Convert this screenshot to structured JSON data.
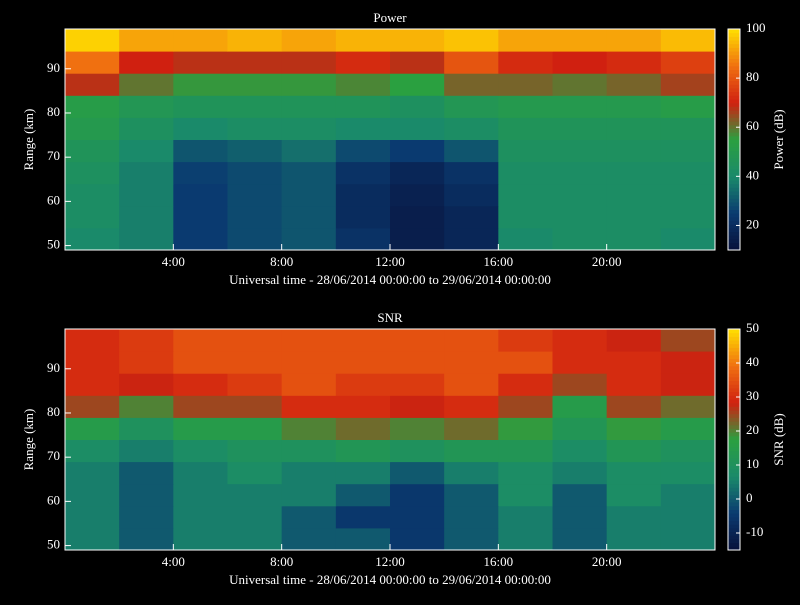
{
  "chart_data": [
    {
      "type": "heatmap",
      "title": "Power",
      "xlabel": "Universal time - 28/06/2014 00:00:00 to 29/06/2014 00:00:00",
      "ylabel": "Range (km)",
      "zlabel": "Power (dB)",
      "xlim": [
        0,
        24
      ],
      "xticks": [
        {
          "value": 4,
          "label": "4:00"
        },
        {
          "value": 8,
          "label": "8:00"
        },
        {
          "value": 12,
          "label": "12:00"
        },
        {
          "value": 16,
          "label": "16:00"
        },
        {
          "value": 20,
          "label": "20:00"
        }
      ],
      "ylim": [
        49,
        99
      ],
      "yticks": [
        50,
        60,
        70,
        80,
        90
      ],
      "zlim": [
        10,
        100
      ],
      "zticks": [
        20,
        40,
        60,
        80,
        100
      ],
      "colormap": [
        "#08103a",
        "#0a3a70",
        "#1a8a6a",
        "#2aa040",
        "#d02010",
        "#f07010",
        "#ffe000"
      ],
      "xbins": [
        0,
        2,
        4,
        6,
        8,
        10,
        12,
        14,
        16,
        18,
        20,
        22,
        24
      ],
      "ybins": [
        49,
        54,
        59,
        64,
        69,
        74,
        79,
        84,
        89,
        94,
        99
      ],
      "z": [
        [
          40,
          38,
          25,
          28,
          30,
          22,
          15,
          18,
          40,
          42,
          42,
          40
        ],
        [
          42,
          38,
          25,
          28,
          30,
          20,
          15,
          18,
          42,
          42,
          42,
          42
        ],
        [
          42,
          38,
          25,
          28,
          30,
          20,
          16,
          20,
          42,
          42,
          42,
          42
        ],
        [
          44,
          38,
          26,
          28,
          30,
          22,
          18,
          22,
          42,
          42,
          42,
          42
        ],
        [
          46,
          40,
          30,
          32,
          35,
          28,
          25,
          30,
          44,
          44,
          44,
          44
        ],
        [
          50,
          44,
          40,
          42,
          42,
          40,
          40,
          42,
          46,
          46,
          46,
          46
        ],
        [
          52,
          48,
          46,
          46,
          46,
          46,
          44,
          48,
          50,
          50,
          50,
          52
        ],
        [
          68,
          60,
          56,
          56,
          56,
          58,
          55,
          62,
          62,
          60,
          62,
          66
        ],
        [
          85,
          70,
          68,
          68,
          68,
          72,
          68,
          80,
          72,
          70,
          72,
          76
        ],
        [
          98,
          92,
          92,
          94,
          92,
          94,
          94,
          96,
          92,
          92,
          92,
          95
        ]
      ]
    },
    {
      "type": "heatmap",
      "title": "SNR",
      "xlabel": "Universal time - 28/06/2014 00:00:00 to 29/06/2014 00:00:00",
      "ylabel": "Range (km)",
      "zlabel": "SNR (dB)",
      "xlim": [
        0,
        24
      ],
      "xticks": [
        {
          "value": 4,
          "label": "4:00"
        },
        {
          "value": 8,
          "label": "8:00"
        },
        {
          "value": 12,
          "label": "12:00"
        },
        {
          "value": 16,
          "label": "16:00"
        },
        {
          "value": 20,
          "label": "20:00"
        }
      ],
      "ylim": [
        49,
        99
      ],
      "yticks": [
        50,
        60,
        70,
        80,
        90
      ],
      "zlim": [
        -15,
        50
      ],
      "zticks": [
        -10,
        0,
        10,
        20,
        30,
        40,
        50
      ],
      "colormap": [
        "#08103a",
        "#0a3a70",
        "#1a8a6a",
        "#2aa040",
        "#d02010",
        "#f07010",
        "#ffe000"
      ],
      "xbins": [
        0,
        2,
        4,
        6,
        8,
        10,
        12,
        14,
        16,
        18,
        20,
        22,
        24
      ],
      "ybins": [
        49,
        54,
        59,
        64,
        69,
        74,
        79,
        84,
        89,
        94,
        99
      ],
      "z": [
        [
          5,
          0,
          5,
          5,
          0,
          0,
          -5,
          0,
          5,
          0,
          5,
          5
        ],
        [
          5,
          0,
          5,
          5,
          0,
          -5,
          -5,
          0,
          5,
          0,
          5,
          5
        ],
        [
          5,
          0,
          5,
          5,
          5,
          0,
          -5,
          0,
          8,
          0,
          8,
          5
        ],
        [
          5,
          0,
          5,
          8,
          5,
          5,
          0,
          5,
          8,
          5,
          8,
          8
        ],
        [
          8,
          5,
          8,
          10,
          10,
          12,
          10,
          12,
          12,
          8,
          12,
          10
        ],
        [
          15,
          10,
          15,
          15,
          20,
          22,
          20,
          22,
          18,
          12,
          18,
          15
        ],
        [
          25,
          20,
          25,
          25,
          30,
          30,
          28,
          30,
          25,
          15,
          25,
          22
        ],
        [
          30,
          28,
          30,
          32,
          35,
          32,
          32,
          35,
          30,
          25,
          30,
          28
        ],
        [
          30,
          32,
          35,
          35,
          35,
          35,
          35,
          35,
          35,
          30,
          30,
          28
        ],
        [
          30,
          32,
          35,
          35,
          35,
          35,
          35,
          35,
          32,
          30,
          28,
          25
        ]
      ]
    }
  ]
}
